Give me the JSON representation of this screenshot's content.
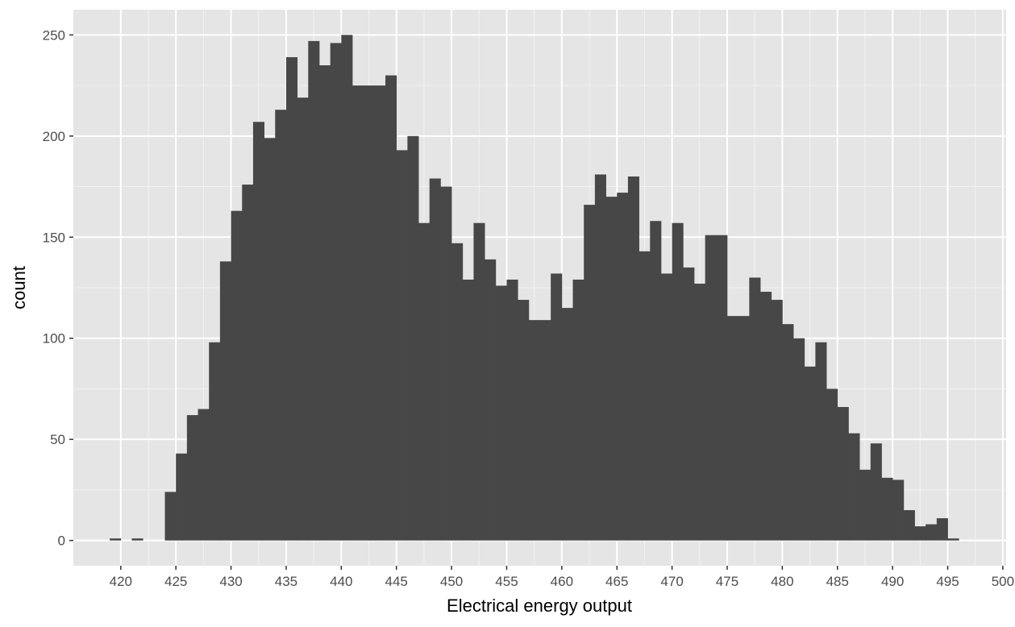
{
  "chart_data": {
    "type": "histogram",
    "title": "",
    "xlabel": "Electrical energy output",
    "ylabel": "count",
    "x_ticks": [
      420,
      425,
      430,
      435,
      440,
      445,
      450,
      455,
      460,
      465,
      470,
      475,
      480,
      485,
      490,
      495,
      500
    ],
    "x_tick_labels": [
      "420",
      "425",
      "430",
      "435",
      "440",
      "445",
      "450",
      "455",
      "460",
      "465",
      "470",
      "475",
      "480",
      "485",
      "490",
      "495",
      "500"
    ],
    "y_ticks": [
      0,
      50,
      100,
      150,
      200,
      250
    ],
    "y_tick_labels": [
      "0",
      "50",
      "100",
      "150",
      "200",
      "250"
    ],
    "xlim": [
      415.7,
      500.3
    ],
    "ylim": [
      -12.5,
      262.5
    ],
    "bin_width": 1,
    "bin_starts": [
      419,
      420,
      421,
      422,
      423,
      424,
      425,
      426,
      427,
      428,
      429,
      430,
      431,
      432,
      433,
      434,
      435,
      436,
      437,
      438,
      439,
      440,
      441,
      442,
      443,
      444,
      445,
      446,
      447,
      448,
      449,
      450,
      451,
      452,
      453,
      454,
      455,
      456,
      457,
      458,
      459,
      460,
      461,
      462,
      463,
      464,
      465,
      466,
      467,
      468,
      469,
      470,
      471,
      472,
      473,
      474,
      475,
      476,
      477,
      478,
      479,
      480,
      481,
      482,
      483,
      484,
      485,
      486,
      487,
      488,
      489,
      490,
      491,
      492,
      493,
      494,
      495,
      496
    ],
    "counts": [
      1,
      0,
      1,
      0,
      0,
      24,
      43,
      62,
      65,
      98,
      138,
      163,
      176,
      207,
      199,
      213,
      239,
      219,
      247,
      235,
      246,
      250,
      225,
      225,
      225,
      230,
      193,
      200,
      157,
      179,
      175,
      147,
      129,
      157,
      139,
      126,
      129,
      119,
      109,
      109,
      132,
      115,
      129,
      166,
      181,
      170,
      172,
      180,
      143,
      158,
      132,
      157,
      135,
      127,
      151,
      151,
      111,
      111,
      130,
      123,
      119,
      107,
      100,
      86,
      98,
      75,
      66,
      53,
      35,
      48,
      31,
      30,
      15,
      7,
      8,
      11,
      1,
      0
    ],
    "colors": {
      "bar": "#474747",
      "panel_background": "#e5e5e5",
      "grid_major": "#ffffff",
      "grid_minor": "#f2f2f2",
      "tick_label": "#4d4d4d",
      "axis_title": "#000000"
    },
    "grid": true,
    "legend": "none"
  }
}
